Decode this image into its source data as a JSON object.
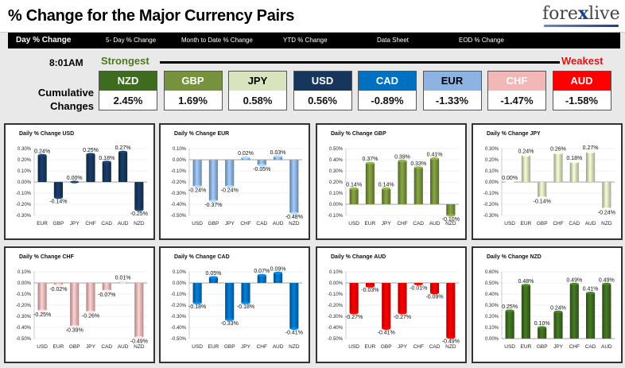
{
  "header": {
    "title": "% Change for the Major Currency Pairs",
    "logo_text_a": "fore",
    "logo_text_x": "x",
    "logo_text_b": "live"
  },
  "nav": {
    "items": [
      {
        "label": "Day % Change",
        "active": true
      },
      {
        "label": "5- Day % Change",
        "active": false
      },
      {
        "label": "Month to Date % Change",
        "active": false
      },
      {
        "label": "YTD % Change",
        "active": false
      },
      {
        "label": "Data Sheet",
        "active": false
      },
      {
        "label": "EOD % Change",
        "active": false
      }
    ]
  },
  "summary": {
    "time": "8:01AM",
    "strongest_label": "Strongest",
    "weakest_label": "Weakest",
    "cumulative_label_1": "Cumulative",
    "cumulative_label_2": "Changes",
    "currencies": [
      {
        "name": "NZD",
        "value": "2.45%",
        "bg": "#3d6b1f",
        "fg": "#ffffff"
      },
      {
        "name": "GBP",
        "value": "1.69%",
        "bg": "#76923c",
        "fg": "#ffffff"
      },
      {
        "name": "JPY",
        "value": "0.58%",
        "bg": "#d7e4bd",
        "fg": "#000000"
      },
      {
        "name": "USD",
        "value": "0.56%",
        "bg": "#17365d",
        "fg": "#ffffff"
      },
      {
        "name": "CAD",
        "value": "-0.89%",
        "bg": "#0070c0",
        "fg": "#ffffff"
      },
      {
        "name": "EUR",
        "value": "-1.33%",
        "bg": "#8db3e2",
        "fg": "#000000"
      },
      {
        "name": "CHF",
        "value": "-1.47%",
        "bg": "#f2b8b8",
        "fg": "#ffffff"
      },
      {
        "name": "AUD",
        "value": "-1.58%",
        "bg": "#ff0000",
        "fg": "#ffffff"
      }
    ]
  },
  "chart_data": [
    {
      "type": "bar",
      "title": "Daily % Change USD",
      "categories": [
        "EUR",
        "GBP",
        "JPY",
        "CHF",
        "CAD",
        "AUD",
        "NZD"
      ],
      "values": [
        0.24,
        -0.14,
        0.0,
        0.25,
        0.18,
        0.27,
        -0.25
      ],
      "ylim": [
        -0.3,
        0.3
      ],
      "yticks": [
        "0.30%",
        "0.20%",
        "0.10%",
        "0.00%",
        "-0.10%",
        "-0.20%",
        "-0.30%"
      ],
      "labels": [
        "0.24%",
        "-0.14%",
        "0.00%",
        "0.25%",
        "0.18%",
        "0.27%",
        "-0.25%"
      ],
      "color": "#17365d"
    },
    {
      "type": "bar",
      "title": "Daily % Change EUR",
      "categories": [
        "USD",
        "GBP",
        "JPY",
        "CHF",
        "CAD",
        "AUD",
        "NZD"
      ],
      "values": [
        -0.24,
        -0.37,
        -0.24,
        0.02,
        -0.05,
        0.03,
        -0.48
      ],
      "ylim": [
        -0.5,
        0.1
      ],
      "yticks": [
        "0.10%",
        "0.00%",
        "-0.10%",
        "-0.20%",
        "-0.30%",
        "-0.40%",
        "-0.50%"
      ],
      "labels": [
        "-0.24%",
        "-0.37%",
        "-0.24%",
        "0.02%",
        "-0.05%",
        "0.03%",
        "-0.48%"
      ],
      "color": "#8db3e2"
    },
    {
      "type": "bar",
      "title": "Daily % Change GBP",
      "categories": [
        "USD",
        "EUR",
        "JPY",
        "CHF",
        "CAD",
        "AUD",
        "NZD"
      ],
      "values": [
        0.14,
        0.37,
        0.14,
        0.39,
        0.33,
        0.41,
        -0.1
      ],
      "ylim": [
        -0.1,
        0.5
      ],
      "yticks": [
        "0.50%",
        "0.40%",
        "0.30%",
        "0.20%",
        "0.10%",
        "0.00%",
        "-0.10%"
      ],
      "labels": [
        "0.14%",
        "0.37%",
        "0.14%",
        "0.39%",
        "0.33%",
        "0.41%",
        "-0.10%"
      ],
      "color": "#76923c"
    },
    {
      "type": "bar",
      "title": "Daily % Change JPY",
      "categories": [
        "USD",
        "EUR",
        "GBP",
        "CHF",
        "CAD",
        "AUD",
        "NZD"
      ],
      "values": [
        0.0,
        0.24,
        -0.14,
        0.26,
        0.18,
        0.27,
        -0.24
      ],
      "ylim": [
        -0.3,
        0.3
      ],
      "yticks": [
        "0.30%",
        "0.20%",
        "0.10%",
        "0.00%",
        "-0.10%",
        "-0.20%",
        "-0.30%"
      ],
      "labels": [
        "0.00%",
        "0.24%",
        "-0.14%",
        "0.26%",
        "0.18%",
        "0.27%",
        "-0.24%"
      ],
      "color": "#d7e4bd"
    },
    {
      "type": "bar",
      "title": "Daily % Change CHF",
      "categories": [
        "USD",
        "EUR",
        "GBP",
        "JPY",
        "CAD",
        "AUD",
        "NZD"
      ],
      "values": [
        -0.25,
        -0.02,
        -0.39,
        -0.26,
        -0.07,
        0.01,
        -0.49
      ],
      "ylim": [
        -0.5,
        0.1
      ],
      "yticks": [
        "0.10%",
        "0.00%",
        "-0.10%",
        "-0.20%",
        "-0.30%",
        "-0.40%",
        "-0.50%"
      ],
      "labels": [
        "-0.25%",
        "-0.02%",
        "-0.39%",
        "-0.26%",
        "-0.07%",
        "0.01%",
        "-0.49%"
      ],
      "color": "#f2b8b8"
    },
    {
      "type": "bar",
      "title": "Daily % Change CAD",
      "categories": [
        "USD",
        "EUR",
        "GBP",
        "JPY",
        "CHF",
        "AUD",
        "NZD"
      ],
      "values": [
        -0.18,
        0.05,
        -0.33,
        -0.18,
        0.07,
        0.09,
        -0.41
      ],
      "ylim": [
        -0.5,
        0.1
      ],
      "yticks": [
        "0.10%",
        "0.00%",
        "-0.10%",
        "-0.20%",
        "-0.30%",
        "-0.40%",
        "-0.50%"
      ],
      "labels": [
        "-0.18%",
        "0.05%",
        "-0.33%",
        "-0.18%",
        "0.07%",
        "0.09%",
        "-0.41%"
      ],
      "color": "#0070c0"
    },
    {
      "type": "bar",
      "title": "Daily % Change AUD",
      "categories": [
        "USD",
        "EUR",
        "GBP",
        "JPY",
        "CHF",
        "CAD",
        "NZD"
      ],
      "values": [
        -0.27,
        -0.03,
        -0.41,
        -0.27,
        -0.01,
        -0.09,
        -0.49
      ],
      "ylim": [
        -0.5,
        0.1
      ],
      "yticks": [
        "0.10%",
        "0.00%",
        "-0.10%",
        "-0.20%",
        "-0.30%",
        "-0.40%",
        "-0.50%"
      ],
      "labels": [
        "-0.27%",
        "-0.03%",
        "-0.41%",
        "-0.27%",
        "-0.01%",
        "-0.09%",
        "-0.49%"
      ],
      "color": "#ff0000"
    },
    {
      "type": "bar",
      "title": "Daily % Change NZD",
      "categories": [
        "USD",
        "EUR",
        "GBP",
        "JPY",
        "CHF",
        "CAD",
        "AUD"
      ],
      "values": [
        0.25,
        0.48,
        0.1,
        0.24,
        0.49,
        0.41,
        0.49
      ],
      "ylim": [
        0.0,
        0.6
      ],
      "yticks": [
        "0.60%",
        "0.50%",
        "0.40%",
        "0.30%",
        "0.20%",
        "0.10%",
        "0.00%"
      ],
      "labels": [
        "0.25%",
        "0.48%",
        "0.10%",
        "0.24%",
        "0.49%",
        "0.41%",
        "0.49%"
      ],
      "color": "#3d6b1f"
    }
  ]
}
